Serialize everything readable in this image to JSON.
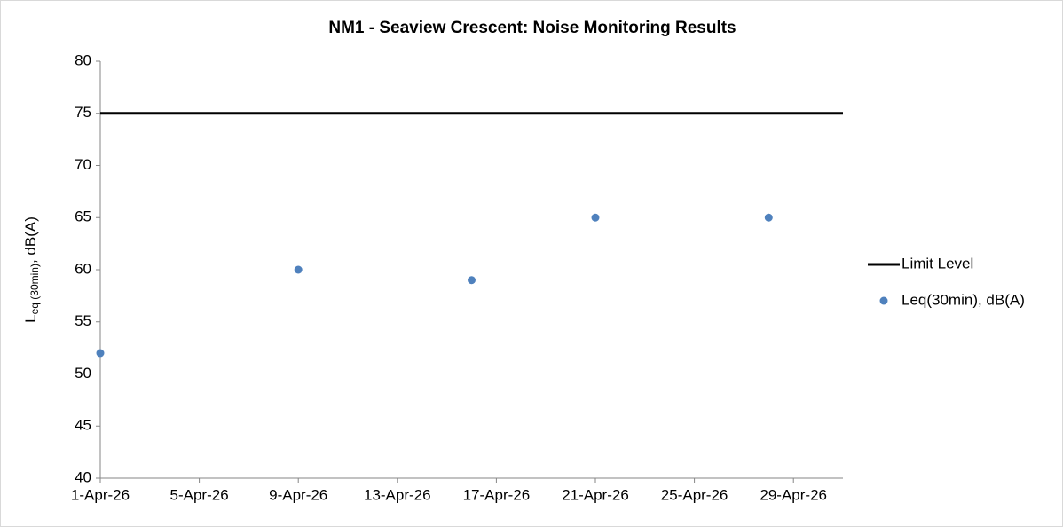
{
  "chart_data": {
    "type": "scatter",
    "title": "NM1 - Seaview Crescent: Noise Monitoring Results",
    "y_label": {
      "main": "L",
      "subscript": "eq (30min)",
      "suffix": ", dB(A)"
    },
    "xlim": [
      "1-Apr-26",
      "1-May-26"
    ],
    "xticks": [
      "1-Apr-26",
      "5-Apr-26",
      "9-Apr-26",
      "13-Apr-26",
      "17-Apr-26",
      "21-Apr-26",
      "25-Apr-26",
      "29-Apr-26"
    ],
    "ylim": [
      40,
      80
    ],
    "yticks": [
      40,
      45,
      50,
      55,
      60,
      65,
      70,
      75,
      80
    ],
    "grid": false,
    "legend": "right",
    "series": [
      {
        "name": "Limit Level",
        "kind": "line",
        "color": "#000000",
        "x": [
          "1-Apr-26",
          "1-May-26"
        ],
        "values": [
          75,
          75
        ]
      },
      {
        "name": "Leq(30min), dB(A)",
        "kind": "scatter",
        "color": "#4f81bd",
        "x": [
          "1-Apr-26",
          "9-Apr-26",
          "16-Apr-26",
          "21-Apr-26",
          "28-Apr-26"
        ],
        "values": [
          52,
          60,
          59,
          65,
          65
        ]
      }
    ]
  }
}
